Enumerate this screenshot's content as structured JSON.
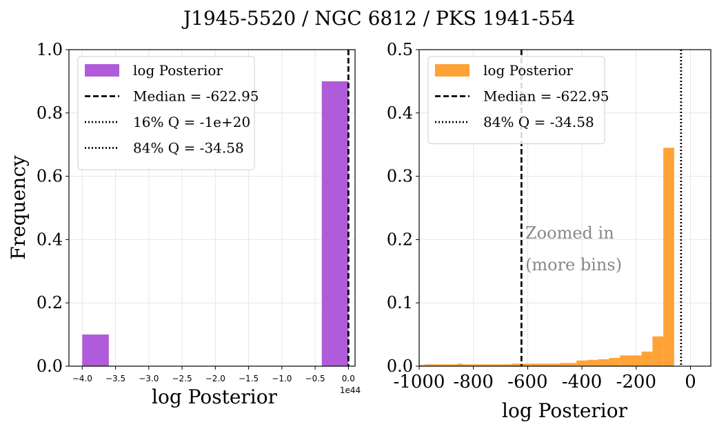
{
  "figure_title": "J1945-5520 / NGC 6812 / PKS 1941-554",
  "chart_data": [
    {
      "type": "bar",
      "panel": "left",
      "xlabel": "log Posterior",
      "ylabel": "Frequency",
      "x_offset_label": "1e44",
      "xlim": [
        -4.2,
        0.1
      ],
      "ylim": [
        0,
        1.0
      ],
      "x_ticks": [
        -4.0,
        -3.5,
        -3.0,
        -2.5,
        -2.0,
        -1.5,
        -1.0,
        -0.5,
        0.0
      ],
      "x_tick_labels": [
        "−4.0",
        "−3.5",
        "−3.0",
        "−2.5",
        "−2.0",
        "−1.5",
        "−1.0",
        "−0.5",
        "0.0"
      ],
      "y_ticks": [
        0.0,
        0.2,
        0.4,
        0.6,
        0.8,
        1.0
      ],
      "y_tick_labels": [
        "0.0",
        "0.2",
        "0.4",
        "0.6",
        "0.8",
        "1.0"
      ],
      "grid": true,
      "legend_position": "top-left",
      "bar_color": "#b05bd9",
      "bins": [
        {
          "x0": -4.0,
          "x1": -3.6,
          "value": 0.1
        },
        {
          "x0": -0.4,
          "x1": 0.0,
          "value": 0.9
        }
      ],
      "vlines": [
        {
          "x": 0.0,
          "style": "dashed",
          "label": "Median = -622.95"
        }
      ],
      "legend": [
        {
          "kind": "patch",
          "color": "#b05bd9",
          "label": "log Posterior"
        },
        {
          "kind": "dashed",
          "label": "Median = -622.95"
        },
        {
          "kind": "dotted",
          "label": "16% Q = -1e+20"
        },
        {
          "kind": "dotted",
          "label": "84% Q = -34.58"
        }
      ]
    },
    {
      "type": "bar",
      "panel": "right",
      "xlabel": "log Posterior",
      "ylabel": "",
      "xlim": [
        -1000,
        75
      ],
      "ylim": [
        0,
        0.5
      ],
      "x_ticks": [
        -1000,
        -800,
        -600,
        -400,
        -200,
        0
      ],
      "x_tick_labels": [
        "-1000",
        "-800",
        "-600",
        "-400",
        "-200",
        "0"
      ],
      "y_ticks": [
        0.0,
        0.1,
        0.2,
        0.3,
        0.4,
        0.5
      ],
      "y_tick_labels": [
        "0.0",
        "0.1",
        "0.2",
        "0.3",
        "0.4",
        "0.5"
      ],
      "grid": true,
      "legend_position": "top-left",
      "bar_color": "#ffa336",
      "bins": [
        {
          "x0": -1000,
          "x1": -980,
          "value": 0.002
        },
        {
          "x0": -980,
          "x1": -920,
          "value": 0.003
        },
        {
          "x0": -920,
          "x1": -860,
          "value": 0.003
        },
        {
          "x0": -860,
          "x1": -840,
          "value": 0.004
        },
        {
          "x0": -840,
          "x1": -780,
          "value": 0.003
        },
        {
          "x0": -780,
          "x1": -720,
          "value": 0.003
        },
        {
          "x0": -720,
          "x1": -660,
          "value": 0.003
        },
        {
          "x0": -660,
          "x1": -600,
          "value": 0.004
        },
        {
          "x0": -600,
          "x1": -540,
          "value": 0.004
        },
        {
          "x0": -540,
          "x1": -480,
          "value": 0.004
        },
        {
          "x0": -480,
          "x1": -420,
          "value": 0.005
        },
        {
          "x0": -420,
          "x1": -380,
          "value": 0.009
        },
        {
          "x0": -380,
          "x1": -340,
          "value": 0.01
        },
        {
          "x0": -340,
          "x1": -300,
          "value": 0.011
        },
        {
          "x0": -300,
          "x1": -260,
          "value": 0.013
        },
        {
          "x0": -260,
          "x1": -220,
          "value": 0.017
        },
        {
          "x0": -220,
          "x1": -180,
          "value": 0.017
        },
        {
          "x0": -180,
          "x1": -140,
          "value": 0.023
        },
        {
          "x0": -140,
          "x1": -100,
          "value": 0.047
        },
        {
          "x0": -100,
          "x1": -60,
          "value": 0.345
        }
      ],
      "vlines": [
        {
          "x": -622.95,
          "style": "dashed",
          "label": "Median = -622.95"
        },
        {
          "x": -34.58,
          "style": "dotted",
          "label": "84% Q = -34.58"
        }
      ],
      "annotation": [
        "Zoomed in",
        "(more bins)"
      ],
      "legend": [
        {
          "kind": "patch",
          "color": "#ffa336",
          "label": "log Posterior"
        },
        {
          "kind": "dashed",
          "label": "Median = -622.95"
        },
        {
          "kind": "dotted",
          "label": "84% Q = -34.58"
        }
      ]
    }
  ]
}
